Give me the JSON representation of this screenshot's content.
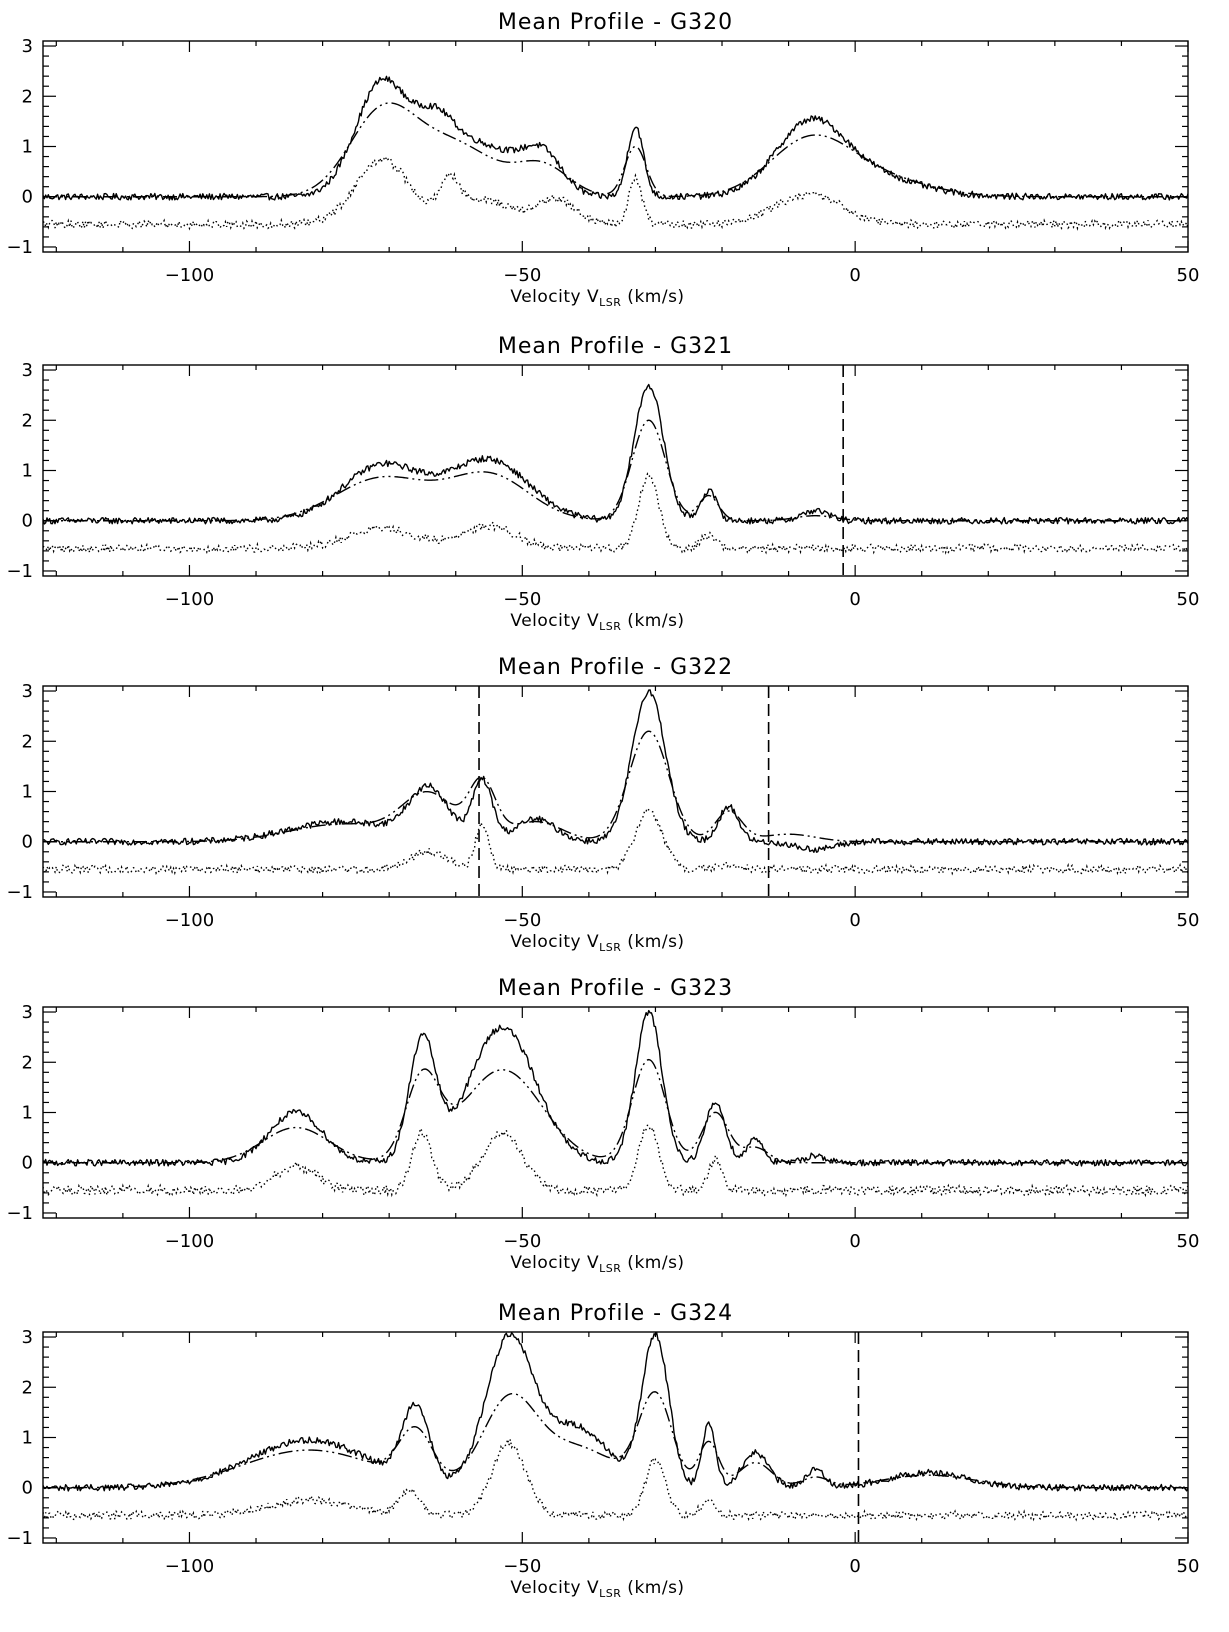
{
  "chart_data": [
    {
      "type": "line",
      "title": "Mean Profile - G320",
      "xlabel": "Velocity V",
      "xlabel_sub": "LSR",
      "xlabel_unit": " (km/s)",
      "xlim": [
        -122,
        50
      ],
      "ylim": [
        -1.1,
        3.1
      ],
      "xticks": [
        -100,
        -50,
        0,
        50
      ],
      "yticks": [
        -1,
        0,
        1,
        2,
        3
      ],
      "markers": [],
      "series": [
        {
          "style": "solid",
          "peaks": [
            [
              -71,
              2.3,
              4
            ],
            [
              -63,
              1.1,
              3
            ],
            [
              -56,
              1.0,
              5
            ],
            [
              -47,
              0.8,
              3
            ],
            [
              -33,
              1.4,
              1.2
            ],
            [
              -7,
              1.2,
              5
            ],
            [
              0,
              0.5,
              8
            ]
          ],
          "noise": 0.04
        },
        {
          "style": "dash-dot",
          "peaks": [
            [
              -71,
              1.65,
              5
            ],
            [
              -60,
              1.0,
              6
            ],
            [
              -47,
              0.6,
              4
            ],
            [
              -33,
              1.0,
              1.6
            ],
            [
              -7,
              1.0,
              6
            ],
            [
              2,
              0.4,
              8
            ]
          ],
          "noise": 0
        },
        {
          "style": "dotted",
          "offset": -0.55,
          "peaks": [
            [
              -71,
              1.3,
              4
            ],
            [
              -61,
              0.7,
              1.5
            ],
            [
              -56,
              0.5,
              4
            ],
            [
              -45,
              0.5,
              3
            ],
            [
              -33,
              0.9,
              1
            ],
            [
              -7,
              0.6,
              5
            ]
          ],
          "noise": 0.05
        }
      ]
    },
    {
      "type": "line",
      "title": "Mean Profile - G321",
      "xlabel": "Velocity V",
      "xlabel_sub": "LSR",
      "xlabel_unit": " (km/s)",
      "xlim": [
        -122,
        50
      ],
      "ylim": [
        -1.1,
        3.1
      ],
      "xticks": [
        -100,
        -50,
        0,
        50
      ],
      "yticks": [
        -1,
        0,
        1,
        2,
        3
      ],
      "markers": [
        -1.8
      ],
      "series": [
        {
          "style": "solid",
          "peaks": [
            [
              -71,
              1.1,
              6
            ],
            [
              -55,
              1.2,
              6
            ],
            [
              -31,
              2.7,
              2.2
            ],
            [
              -22,
              0.6,
              1.2
            ],
            [
              -6,
              0.2,
              2
            ]
          ],
          "noise": 0.04
        },
        {
          "style": "dash-dot",
          "peaks": [
            [
              -71,
              0.85,
              7
            ],
            [
              -55,
              0.9,
              6
            ],
            [
              -31,
              2.0,
              2.5
            ],
            [
              -22,
              0.5,
              1.5
            ],
            [
              -6,
              0.1,
              3
            ]
          ],
          "noise": 0
        },
        {
          "style": "dotted",
          "offset": -0.55,
          "peaks": [
            [
              -71,
              0.4,
              5
            ],
            [
              -55,
              0.45,
              4
            ],
            [
              -31,
              1.45,
              1.5
            ],
            [
              -22,
              0.25,
              1.2
            ]
          ],
          "noise": 0.05
        }
      ]
    },
    {
      "type": "line",
      "title": "Mean Profile - G322",
      "xlabel": "Velocity V",
      "xlabel_sub": "LSR",
      "xlabel_unit": " (km/s)",
      "xlim": [
        -122,
        50
      ],
      "ylim": [
        -1.1,
        3.1
      ],
      "xticks": [
        -100,
        -50,
        0,
        50
      ],
      "yticks": [
        -1,
        0,
        1,
        2,
        3
      ],
      "markers": [
        -56.5,
        -13
      ],
      "series": [
        {
          "style": "solid",
          "peaks": [
            [
              -77,
              0.4,
              8
            ],
            [
              -64,
              1.0,
              3
            ],
            [
              -56,
              1.2,
              1.5
            ],
            [
              -48,
              0.45,
              3
            ],
            [
              -31,
              3.0,
              2.5
            ],
            [
              -19,
              0.7,
              1.5
            ],
            [
              -6,
              -0.15,
              3
            ]
          ],
          "noise": 0.04
        },
        {
          "style": "dash-dot",
          "peaks": [
            [
              -77,
              0.35,
              8
            ],
            [
              -64,
              0.9,
              4
            ],
            [
              -56,
              1.1,
              2
            ],
            [
              -48,
              0.4,
              4
            ],
            [
              -31,
              2.2,
              3
            ],
            [
              -19,
              0.6,
              2
            ],
            [
              -10,
              0.15,
              4
            ]
          ],
          "noise": 0
        },
        {
          "style": "dotted",
          "offset": -0.55,
          "peaks": [
            [
              -64,
              0.35,
              3
            ],
            [
              -56,
              0.9,
              1
            ],
            [
              -31,
              1.2,
              2
            ],
            [
              -19,
              0.1,
              2
            ]
          ],
          "noise": 0.05
        }
      ]
    },
    {
      "type": "line",
      "title": "Mean Profile - G323",
      "xlabel": "Velocity V",
      "xlabel_sub": "LSR",
      "xlabel_unit": " (km/s)",
      "xlim": [
        -122,
        50
      ],
      "ylim": [
        -1.1,
        3.1
      ],
      "xticks": [
        -100,
        -50,
        0,
        50
      ],
      "yticks": [
        -1,
        0,
        1,
        2,
        3
      ],
      "markers": [],
      "series": [
        {
          "style": "solid",
          "peaks": [
            [
              -84,
              1.0,
              4
            ],
            [
              -65,
              2.4,
              2
            ],
            [
              -53,
              2.7,
              5
            ],
            [
              -31,
              3.0,
              2
            ],
            [
              -21,
              1.2,
              1.5
            ],
            [
              -15,
              0.5,
              1.2
            ],
            [
              -6,
              0.15,
              1.5
            ]
          ],
          "noise": 0.04
        },
        {
          "style": "dash-dot",
          "peaks": [
            [
              -84,
              0.7,
              5
            ],
            [
              -65,
              1.6,
              2.5
            ],
            [
              -53,
              1.85,
              6
            ],
            [
              -31,
              2.05,
              2.5
            ],
            [
              -21,
              1.0,
              2
            ],
            [
              -15,
              0.3,
              2
            ]
          ],
          "noise": 0
        },
        {
          "style": "dotted",
          "offset": -0.55,
          "peaks": [
            [
              -84,
              0.5,
              3
            ],
            [
              -65,
              1.15,
              1.5
            ],
            [
              -53,
              1.15,
              3
            ],
            [
              -31,
              1.3,
              1.5
            ],
            [
              -21,
              0.6,
              1
            ]
          ],
          "noise": 0.06
        }
      ]
    },
    {
      "type": "line",
      "title": "Mean Profile - G324",
      "xlabel": "Velocity V",
      "xlabel_sub": "LSR",
      "xlabel_unit": " (km/s)",
      "xlim": [
        -122,
        50
      ],
      "ylim": [
        -1.1,
        3.1
      ],
      "xticks": [
        -100,
        -50,
        0,
        50
      ],
      "yticks": [
        -1,
        0,
        1,
        2,
        3
      ],
      "markers": [
        0.5
      ],
      "series": [
        {
          "style": "solid",
          "peaks": [
            [
              -82,
              0.95,
              9
            ],
            [
              -66,
              1.5,
              2
            ],
            [
              -52,
              2.9,
              3.5
            ],
            [
              -42,
              1.2,
              5
            ],
            [
              -30,
              3.0,
              2
            ],
            [
              -22,
              1.3,
              1
            ],
            [
              -15,
              0.7,
              2
            ],
            [
              -6,
              0.35,
              1.5
            ],
            [
              11,
              0.3,
              6
            ]
          ],
          "noise": 0.04
        },
        {
          "style": "dash-dot",
          "peaks": [
            [
              -82,
              0.75,
              10
            ],
            [
              -66,
              1.0,
              2.5
            ],
            [
              -52,
              1.65,
              4
            ],
            [
              -42,
              0.8,
              6
            ],
            [
              -30,
              1.8,
              2.5
            ],
            [
              -22,
              0.9,
              1.5
            ],
            [
              -15,
              0.5,
              2.5
            ],
            [
              -6,
              0.2,
              2
            ],
            [
              11,
              0.25,
              7
            ]
          ],
          "noise": 0
        },
        {
          "style": "dotted",
          "offset": -0.55,
          "peaks": [
            [
              -82,
              0.3,
              6
            ],
            [
              -67,
              0.5,
              1.5
            ],
            [
              -52,
              1.45,
              2.5
            ],
            [
              -30,
              1.1,
              1.5
            ],
            [
              -22,
              0.35,
              1
            ]
          ],
          "noise": 0.05
        }
      ]
    }
  ]
}
